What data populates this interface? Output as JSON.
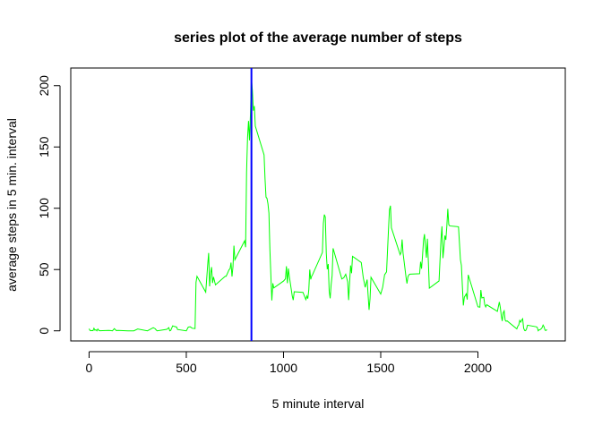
{
  "chart_data": {
    "type": "line",
    "title": "series plot of the average number of steps",
    "x_label": "5 minute interval",
    "y_label": "average steps in 5 min. interval",
    "x": [
      0,
      5,
      10,
      15,
      20,
      25,
      30,
      35,
      40,
      45,
      50,
      55,
      100,
      110,
      120,
      130,
      140,
      150,
      200,
      230,
      250,
      300,
      330,
      340,
      345,
      350,
      400,
      410,
      415,
      420,
      430,
      440,
      450,
      455,
      500,
      510,
      520,
      530,
      545,
      550,
      555,
      600,
      610,
      615,
      620,
      625,
      630,
      635,
      640,
      650,
      700,
      705,
      720,
      725,
      730,
      735,
      740,
      745,
      750,
      800,
      805,
      810,
      815,
      820,
      825,
      830,
      835,
      840,
      845,
      850,
      855,
      900,
      905,
      910,
      915,
      920,
      925,
      930,
      935,
      940,
      945,
      950,
      1000,
      1010,
      1015,
      1020,
      1025,
      1030,
      1045,
      1050,
      1055,
      1100,
      1115,
      1120,
      1125,
      1130,
      1135,
      1140,
      1145,
      1150,
      1200,
      1205,
      1210,
      1215,
      1220,
      1225,
      1230,
      1235,
      1240,
      1245,
      1250,
      1255,
      1300,
      1310,
      1320,
      1330,
      1335,
      1340,
      1345,
      1350,
      1355,
      1400,
      1410,
      1420,
      1430,
      1440,
      1445,
      1450,
      1500,
      1510,
      1520,
      1530,
      1540,
      1545,
      1550,
      1555,
      1600,
      1605,
      1610,
      1615,
      1620,
      1630,
      1635,
      1640,
      1645,
      1650,
      1700,
      1705,
      1710,
      1715,
      1720,
      1725,
      1730,
      1735,
      1740,
      1745,
      1750,
      1800,
      1810,
      1815,
      1820,
      1825,
      1830,
      1835,
      1840,
      1845,
      1850,
      1855,
      1900,
      1910,
      1915,
      1920,
      1925,
      1930,
      1940,
      1945,
      1950,
      2000,
      2010,
      2015,
      2020,
      2030,
      2035,
      2040,
      2045,
      2100,
      2110,
      2115,
      2120,
      2125,
      2130,
      2135,
      2140,
      2145,
      2150,
      2200,
      2205,
      2210,
      2215,
      2220,
      2225,
      2230,
      2235,
      2240,
      2245,
      2250,
      2255,
      2300,
      2305,
      2310,
      2315,
      2320,
      2325,
      2330,
      2335,
      2340,
      2345,
      2350,
      2355
    ],
    "values": [
      1.7,
      0.3,
      0.1,
      0.2,
      0.1,
      2.1,
      0.5,
      0.9,
      0,
      1.5,
      0.4,
      0.1,
      0.3,
      0.2,
      0,
      1.8,
      0.2,
      0.3,
      0,
      0,
      1.5,
      0,
      2.6,
      1.7,
      0.7,
      0,
      1.2,
      2.6,
      0,
      0.3,
      4.1,
      3.5,
      3.1,
      1.1,
      0,
      3,
      3.3,
      2.1,
      1.8,
      39.5,
      44.5,
      31.5,
      53.8,
      63.5,
      36.3,
      47,
      52,
      39,
      44,
      37.5,
      44.5,
      44.5,
      49.9,
      50.5,
      55.7,
      44.3,
      52.3,
      69.5,
      58,
      73.4,
      68.2,
      129.4,
      157.5,
      171.2,
      155.4,
      177.3,
      206.2,
      195.9,
      179.6,
      183.4,
      167,
      143.5,
      124,
      109.1,
      108.1,
      103.7,
      96,
      66.2,
      45.2,
      24.8,
      38.8,
      35,
      40.6,
      42.4,
      52.7,
      38.9,
      50.8,
      44.3,
      28.3,
      25.1,
      31.9,
      31.4,
      25.5,
      28.4,
      26.3,
      33.3,
      50,
      42,
      44.6,
      46,
      63.9,
      87.7,
      94.8,
      92.8,
      63.4,
      50.2,
      54.5,
      32.4,
      26.5,
      37.7,
      45.1,
      67.3,
      42.3,
      43.3,
      46.2,
      40,
      25.1,
      39.5,
      53.3,
      47,
      60.8,
      55.7,
      43.6,
      35.5,
      41.8,
      17.1,
      26.2,
      43.7,
      30,
      35.5,
      45.7,
      48.1,
      82.9,
      98.7,
      102.1,
      84,
      62.1,
      64.1,
      74.5,
      63.2,
      56.9,
      43.9,
      38.6,
      44.1,
      45.7,
      46.2,
      46.6,
      56.3,
      50.7,
      61.2,
      73.4,
      78.9,
      68.9,
      59.7,
      75.1,
      56.5,
      34.8,
      40.7,
      74.7,
      85.3,
      59.3,
      67.8,
      77.7,
      74.2,
      85.3,
      99.5,
      86.6,
      85.6,
      84.9,
      58,
      53.4,
      36.3,
      20.7,
      27.4,
      30.2,
      25.5,
      45.7,
      19.6,
      19.3,
      33.3,
      26.8,
      27.3,
      21.3,
      19.5,
      21.3,
      15.9,
      23.5,
      19.2,
      12.5,
      8,
      14.7,
      16.3,
      8.7,
      7.8,
      8.1,
      1.6,
      3.7,
      4.8,
      8.5,
      7.1,
      8.7,
      9.8,
      2.2,
      0.3,
      0.1,
      1.6,
      4.6,
      3.3,
      2.8,
      0,
      0.8,
      1,
      1.6,
      2.6,
      4.7,
      3.3,
      0.6,
      0.2,
      1.1
    ],
    "color": "#00ff00",
    "vline": {
      "x": 835,
      "color": "#0000ff"
    },
    "xlim": [
      -94.2,
      2449.2
    ],
    "ylim": [
      -8.25,
      214.42
    ],
    "xticks": [
      0,
      500,
      1000,
      1500,
      2000
    ],
    "yticks": [
      0,
      50,
      100,
      150,
      200
    ]
  }
}
